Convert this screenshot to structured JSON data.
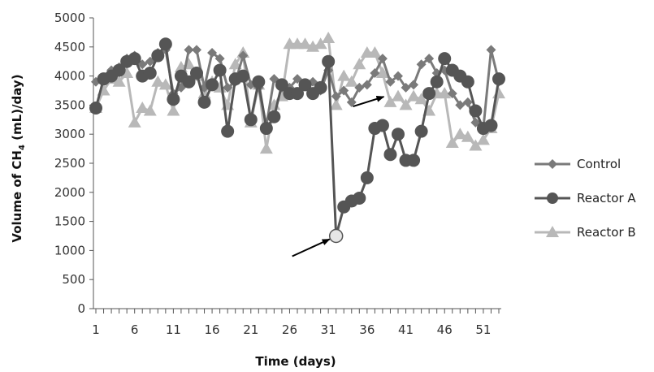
{
  "chart_data": {
    "type": "line",
    "xlabel": "Time (days)",
    "ylabel_prefix": "Volume of CH",
    "ylabel_subscript": "4",
    "ylabel_suffix": " (mL)/day)",
    "xlim": [
      1,
      53
    ],
    "ylim": [
      0,
      5000
    ],
    "y_ticks": [
      "0",
      "500",
      "1000",
      "1500",
      "2000",
      "2500",
      "3000",
      "3500",
      "4000",
      "4500",
      "5000"
    ],
    "x_tick_labels": [
      "1",
      "6",
      "11",
      "16",
      "21",
      "26",
      "31",
      "36",
      "41",
      "46",
      "51"
    ],
    "x_tick_values": [
      1,
      6,
      11,
      16,
      21,
      26,
      31,
      36,
      41,
      46,
      51
    ],
    "legend_position": "right",
    "series": [
      {
        "name": "Control",
        "marker": "diamond",
        "color": "#7a7a7a",
        "x": [
          1,
          2,
          3,
          4,
          5,
          6,
          7,
          8,
          9,
          10,
          11,
          12,
          13,
          14,
          15,
          16,
          17,
          18,
          19,
          20,
          21,
          22,
          23,
          24,
          25,
          26,
          27,
          28,
          29,
          30,
          31,
          32,
          33,
          34,
          35,
          36,
          37,
          38,
          39,
          40,
          41,
          42,
          43,
          44,
          45,
          46,
          47,
          48,
          49,
          50,
          51,
          52,
          53
        ],
        "values": [
          3900,
          3950,
          4100,
          4150,
          4300,
          4350,
          4200,
          4250,
          4400,
          4450,
          3700,
          3800,
          4450,
          4450,
          3800,
          4400,
          4300,
          3800,
          3900,
          4350,
          3850,
          3800,
          3150,
          3950,
          3800,
          3800,
          3950,
          3850,
          3900,
          3750,
          4100,
          3650,
          3750,
          3550,
          3800,
          3850,
          4050,
          4300,
          3900,
          4000,
          3800,
          3850,
          4200,
          4300,
          4050,
          4100,
          3700,
          3500,
          3550,
          3200,
          3100,
          4450,
          3900
        ]
      },
      {
        "name": "Reactor A",
        "marker": "circle",
        "color": "#555555",
        "x": [
          1,
          2,
          3,
          4,
          5,
          6,
          7,
          8,
          9,
          10,
          11,
          12,
          13,
          14,
          15,
          16,
          17,
          18,
          19,
          20,
          21,
          22,
          23,
          24,
          25,
          26,
          27,
          28,
          29,
          30,
          31,
          32,
          33,
          34,
          35,
          36,
          37,
          38,
          39,
          40,
          41,
          42,
          43,
          44,
          45,
          46,
          47,
          48,
          49,
          50,
          51,
          52,
          53
        ],
        "values": [
          3450,
          3950,
          4000,
          4100,
          4250,
          4300,
          4000,
          4050,
          4350,
          4550,
          3600,
          4000,
          3900,
          4050,
          3550,
          3850,
          4100,
          3050,
          3950,
          4000,
          3250,
          3900,
          3100,
          3300,
          3850,
          3700,
          3700,
          3850,
          3700,
          3800,
          4250,
          1250,
          1750,
          1850,
          1900,
          2250,
          3100,
          3150,
          2650,
          3000,
          2550,
          2550,
          3050,
          3700,
          3900,
          4300,
          4100,
          4000,
          3900,
          3400,
          3100,
          3150,
          3950
        ]
      },
      {
        "name": "Reactor B",
        "marker": "triangle",
        "color": "#b8b8b8",
        "x": [
          1,
          2,
          3,
          4,
          5,
          6,
          7,
          8,
          9,
          10,
          11,
          12,
          13,
          14,
          15,
          16,
          17,
          18,
          19,
          20,
          21,
          22,
          23,
          24,
          25,
          26,
          27,
          28,
          29,
          30,
          31,
          32,
          33,
          34,
          35,
          36,
          37,
          38,
          39,
          40,
          41,
          42,
          43,
          44,
          45,
          46,
          47,
          48,
          49,
          50,
          51,
          52,
          53
        ],
        "values": [
          3450,
          3750,
          3950,
          3900,
          4050,
          3200,
          3450,
          3400,
          3900,
          3850,
          3400,
          4150,
          4200,
          4000,
          3700,
          3900,
          3800,
          3500,
          4200,
          4400,
          3200,
          3850,
          2750,
          3500,
          3650,
          4550,
          4550,
          4550,
          4500,
          4550,
          4650,
          3500,
          4000,
          3900,
          4200,
          4400,
          4400,
          4050,
          3550,
          3650,
          3500,
          3650,
          3600,
          3400,
          3700,
          3700,
          2850,
          3000,
          2950,
          2800,
          2900,
          3100,
          3700
        ]
      }
    ],
    "annotations": [
      {
        "type": "arrow",
        "target_x": 32,
        "target_y": 1250
      },
      {
        "type": "arrow",
        "target_x": 39,
        "target_y": 3700
      }
    ]
  }
}
